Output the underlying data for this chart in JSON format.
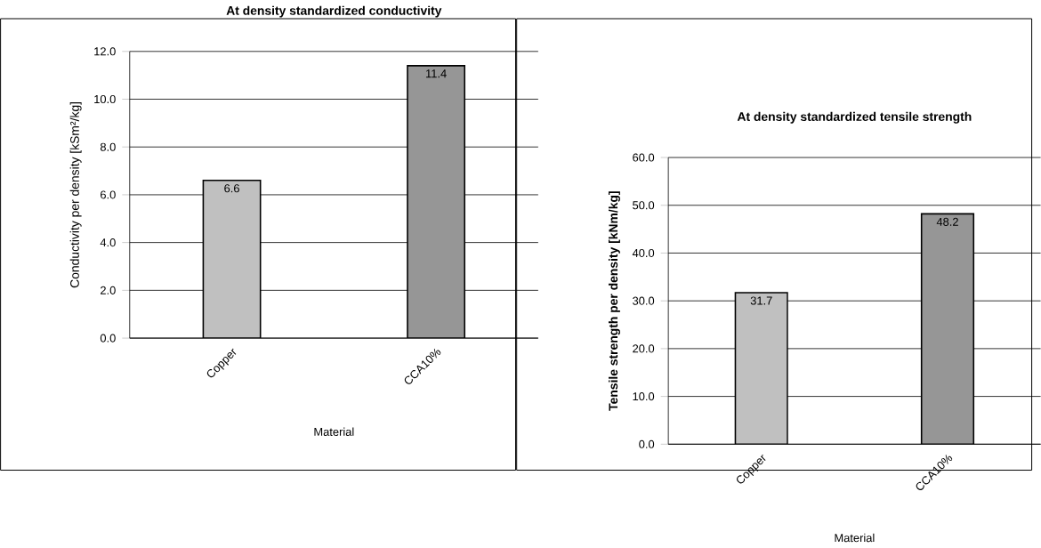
{
  "chart_data": [
    {
      "type": "bar",
      "title": "At density standardized conductivity",
      "xlabel": "Material",
      "ylabel": "Conductivity per density [kSm²/kg]",
      "categories": [
        "Copper",
        "CCA10%"
      ],
      "values": [
        6.6,
        11.4
      ],
      "colors": [
        "#c0c0c0",
        "#969696"
      ],
      "ylim": [
        0,
        12
      ],
      "yticks": [
        {
          "value": 0,
          "label": "0.0"
        },
        {
          "value": 2,
          "label": "2.0"
        },
        {
          "value": 4,
          "label": "4.0"
        },
        {
          "value": 6,
          "label": "6.0"
        },
        {
          "value": 8,
          "label": "8.0"
        },
        {
          "value": 10,
          "label": "10.0"
        },
        {
          "value": 12,
          "label": "12.0"
        }
      ],
      "grid": "y",
      "data_labels": true
    },
    {
      "type": "bar",
      "title": "At density standardized tensile strength",
      "xlabel": "Material",
      "ylabel": "**Tensile strength per density [kNm/kg]**",
      "categories": [
        "Copper",
        "CCA10%"
      ],
      "values": [
        31.7,
        48.2
      ],
      "colors": [
        "#c0c0c0",
        "#969696"
      ],
      "ylim": [
        0,
        60
      ],
      "yticks": [
        {
          "value": 0,
          "label": "0.0"
        },
        {
          "value": 10,
          "label": "10.0"
        },
        {
          "value": 20,
          "label": "20.0"
        },
        {
          "value": 30,
          "label": "30.0"
        },
        {
          "value": 40,
          "label": "40.0"
        },
        {
          "value": 50,
          "label": "50.0"
        },
        {
          "value": 60,
          "label": "60.0"
        }
      ],
      "grid": "y",
      "data_labels": true
    }
  ]
}
